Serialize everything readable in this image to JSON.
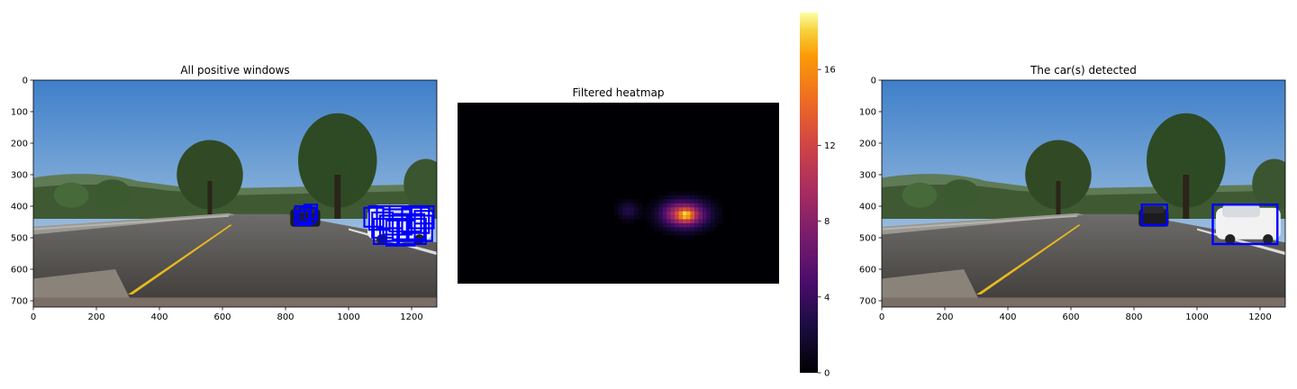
{
  "chart_data": [
    {
      "type": "image",
      "title": "All positive windows",
      "xticks": [
        0,
        200,
        400,
        600,
        800,
        1000,
        1200
      ],
      "yticks": [
        0,
        100,
        200,
        300,
        400,
        500,
        600,
        700
      ],
      "xlim": [
        0,
        1280
      ],
      "ylim": [
        720,
        0
      ],
      "box_color": "#0000ff",
      "boxes": [
        [
          830,
          400,
          880,
          460
        ],
        [
          845,
          405,
          895,
          455
        ],
        [
          835,
          415,
          875,
          450
        ],
        [
          860,
          395,
          900,
          440
        ],
        [
          1050,
          405,
          1110,
          465
        ],
        [
          1065,
          400,
          1130,
          475
        ],
        [
          1075,
          420,
          1140,
          500
        ],
        [
          1080,
          440,
          1160,
          520
        ],
        [
          1090,
          400,
          1170,
          470
        ],
        [
          1100,
          430,
          1190,
          510
        ],
        [
          1110,
          410,
          1200,
          490
        ],
        [
          1120,
          445,
          1210,
          525
        ],
        [
          1130,
          400,
          1230,
          480
        ],
        [
          1140,
          425,
          1240,
          505
        ],
        [
          1155,
          440,
          1245,
          520
        ],
        [
          1170,
          405,
          1255,
          485
        ],
        [
          1185,
          430,
          1265,
          510
        ],
        [
          1195,
          400,
          1270,
          470
        ],
        [
          1210,
          415,
          1268,
          455
        ]
      ]
    },
    {
      "type": "heatmap",
      "title": "Filtered heatmap",
      "colormap": "inferno",
      "vmin": 0,
      "vmax": 19,
      "colorbar_ticks": [
        0,
        4,
        8,
        12,
        16
      ],
      "blobs": [
        {
          "cx": 680,
          "cy": 430,
          "sx": 28,
          "sy": 24,
          "peak": 3
        },
        {
          "cx": 848,
          "cy": 430,
          "sx": 30,
          "sy": 26,
          "peak": 1
        },
        {
          "cx": 905,
          "cy": 445,
          "sx": 60,
          "sy": 36,
          "peak": 12
        },
        {
          "cx": 910,
          "cy": 447,
          "sx": 22,
          "sy": 16,
          "peak": 7
        }
      ]
    },
    {
      "type": "image",
      "title": "The car(s) detected",
      "xticks": [
        0,
        200,
        400,
        600,
        800,
        1000,
        1200
      ],
      "yticks": [
        0,
        100,
        200,
        300,
        400,
        500,
        600,
        700
      ],
      "xlim": [
        0,
        1280
      ],
      "ylim": [
        720,
        0
      ],
      "box_color": "#0000ff",
      "boxes": [
        [
          825,
          395,
          905,
          460
        ],
        [
          1050,
          395,
          1255,
          520
        ]
      ]
    }
  ]
}
